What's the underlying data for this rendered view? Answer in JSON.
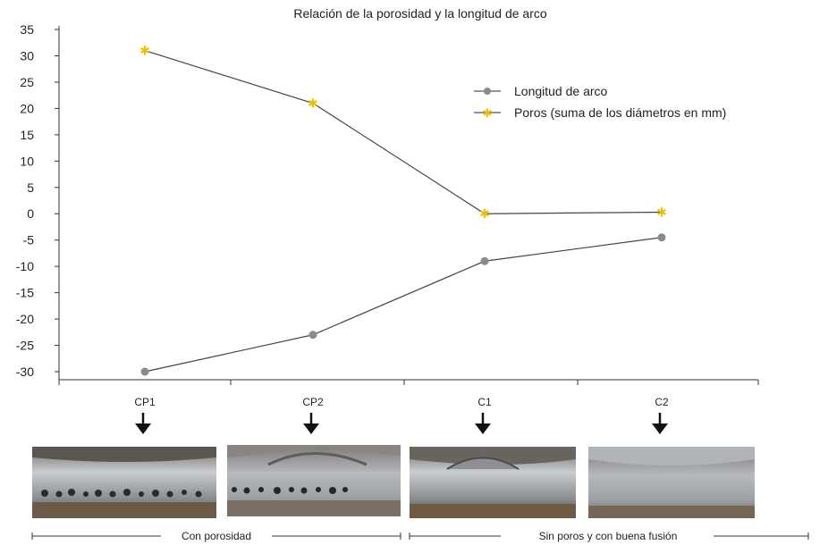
{
  "chart_data": {
    "type": "line",
    "title": "Relación de la porosidad y la longitud de arco",
    "xlabel": "",
    "ylabel": "",
    "categories": [
      "CP1",
      "CP2",
      "C1",
      "C2"
    ],
    "ylim": [
      -30,
      35
    ],
    "yticks": [
      35,
      30,
      25,
      20,
      15,
      10,
      5,
      0,
      -5,
      -10,
      -15,
      -20,
      -25,
      -30
    ],
    "grid": false,
    "legend_position": "top-right",
    "series": [
      {
        "name": "Longitud de arco",
        "values": [
          -30,
          -23,
          -9,
          -4.5
        ],
        "color": "#8a8a8a",
        "marker": "circle"
      },
      {
        "name": "Poros (suma de los diámetros en mm)",
        "values": [
          31,
          21,
          0,
          0.3
        ],
        "color": "#e8c400",
        "marker": "star"
      }
    ],
    "annotations": {
      "group_left": "Con porosidad",
      "group_right": "Sin poros y con buena fusión"
    },
    "photos": [
      {
        "icon": "weld-cross-section-photo-cp1"
      },
      {
        "icon": "weld-cross-section-photo-cp2"
      },
      {
        "icon": "weld-cross-section-photo-c1"
      },
      {
        "icon": "weld-cross-section-photo-c2"
      }
    ]
  }
}
